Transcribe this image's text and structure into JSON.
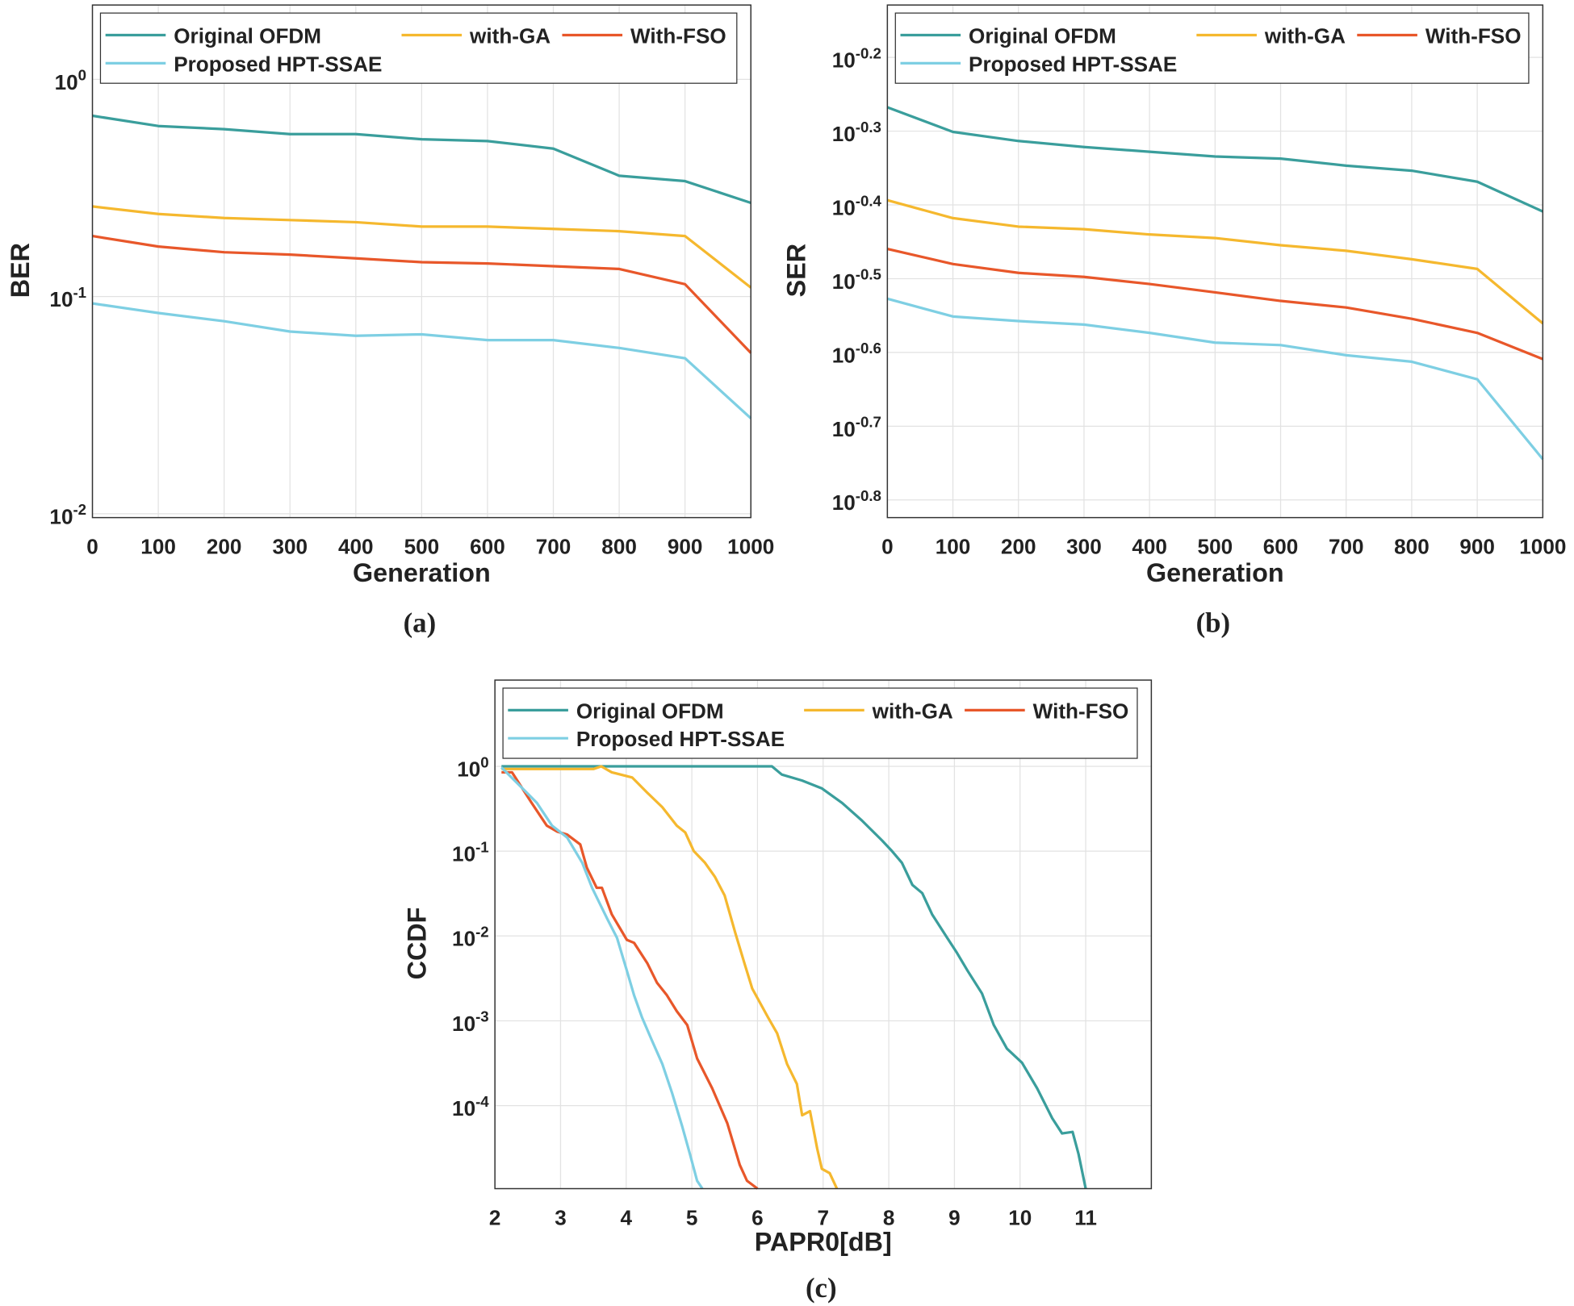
{
  "chart_data": [
    {
      "type": "line",
      "caption": "(a)",
      "xlabel": "Generation",
      "ylabel": "BER",
      "yscale": "log",
      "grid": true,
      "legend": "top",
      "x": [
        0,
        100,
        200,
        300,
        400,
        500,
        600,
        700,
        800,
        900,
        1000
      ],
      "xlim": [
        0,
        1000
      ],
      "xticks": [
        0,
        100,
        200,
        300,
        400,
        500,
        600,
        700,
        800,
        900,
        1000
      ],
      "ylim": [
        0.0096,
        2.2
      ],
      "yticks": [
        {
          "value": 0.01,
          "label": "10^-2"
        },
        {
          "value": 0.1,
          "label": "10^-1"
        },
        {
          "value": 1,
          "label": "10^0"
        }
      ],
      "series": [
        {
          "name": "Original OFDM",
          "color": "#3a9e9c",
          "values": [
            0.68,
            0.61,
            0.59,
            0.56,
            0.56,
            0.53,
            0.52,
            0.48,
            0.36,
            0.34,
            0.27
          ]
        },
        {
          "name": "with-GA",
          "color": "#f5b82e",
          "values": [
            0.26,
            0.24,
            0.23,
            0.225,
            0.22,
            0.21,
            0.21,
            0.205,
            0.2,
            0.19,
            0.11
          ]
        },
        {
          "name": "With-FSO",
          "color": "#e8572a",
          "values": [
            0.19,
            0.17,
            0.16,
            0.156,
            0.15,
            0.144,
            0.142,
            0.138,
            0.134,
            0.114,
            0.055
          ]
        },
        {
          "name": "Proposed HPT-SSAE",
          "color": "#7ecfe3",
          "values": [
            0.093,
            0.084,
            0.077,
            0.069,
            0.066,
            0.067,
            0.063,
            0.063,
            0.058,
            0.052,
            0.0275
          ]
        }
      ]
    },
    {
      "type": "line",
      "caption": "(b)",
      "xlabel": "Generation",
      "ylabel": "SER",
      "yscale": "log",
      "grid": true,
      "legend": "top",
      "x": [
        0,
        100,
        200,
        300,
        400,
        500,
        600,
        700,
        800,
        900,
        1000
      ],
      "xlim": [
        0,
        1000
      ],
      "xticks": [
        0,
        100,
        200,
        300,
        400,
        500,
        600,
        700,
        800,
        900,
        1000
      ],
      "ylim": [
        0.15,
        0.743
      ],
      "yticks": [
        {
          "value": 0.1585,
          "label": "10^-0.8"
        },
        {
          "value": 0.1995,
          "label": "10^-0.7"
        },
        {
          "value": 0.2512,
          "label": "10^-0.6"
        },
        {
          "value": 0.3162,
          "label": "10^-0.5"
        },
        {
          "value": 0.3981,
          "label": "10^-0.4"
        },
        {
          "value": 0.5012,
          "label": "10^-0.3"
        },
        {
          "value": 0.631,
          "label": "10^-0.2"
        }
      ],
      "series": [
        {
          "name": "Original OFDM",
          "color": "#3a9e9c",
          "values": [
            0.54,
            0.5,
            0.486,
            0.477,
            0.47,
            0.463,
            0.46,
            0.45,
            0.443,
            0.428,
            0.39
          ]
        },
        {
          "name": "with-GA",
          "color": "#f5b82e",
          "values": [
            0.404,
            0.382,
            0.372,
            0.369,
            0.363,
            0.359,
            0.351,
            0.345,
            0.336,
            0.326,
            0.275
          ]
        },
        {
          "name": "With-FSO",
          "color": "#e8572a",
          "values": [
            0.347,
            0.331,
            0.322,
            0.318,
            0.311,
            0.303,
            0.295,
            0.289,
            0.279,
            0.267,
            0.246
          ]
        },
        {
          "name": "Proposed HPT-SSAE",
          "color": "#7ecfe3",
          "values": [
            0.297,
            0.281,
            0.277,
            0.274,
            0.267,
            0.259,
            0.257,
            0.249,
            0.244,
            0.231,
            0.18
          ]
        }
      ]
    },
    {
      "type": "line",
      "caption": "(c)",
      "xlabel": "PAPR0[dB]",
      "ylabel": "CCDF",
      "yscale": "log",
      "grid": true,
      "legend": "top",
      "xlim": [
        2,
        12
      ],
      "xticks": [
        2,
        3,
        4,
        5,
        6,
        7,
        8,
        9,
        10,
        11
      ],
      "ylim": [
        1.05e-05,
        10.4
      ],
      "yticks": [
        {
          "value": 0.0001,
          "label": "10^-4"
        },
        {
          "value": 0.001,
          "label": "10^-3"
        },
        {
          "value": 0.01,
          "label": "10^-2"
        },
        {
          "value": 0.1,
          "label": "10^-1"
        },
        {
          "value": 1,
          "label": "10^0"
        }
      ],
      "series": [
        {
          "name": "Original OFDM",
          "color": "#3a9e9c",
          "x": [
            2.1,
            6.22,
            6.37,
            6.68,
            6.98,
            7.29,
            7.59,
            7.9,
            8.05,
            8.2,
            8.36,
            8.51,
            8.66,
            8.89,
            9.04,
            9.2,
            9.42,
            9.6,
            9.8,
            10.03,
            10.26,
            10.49,
            10.64,
            10.8,
            10.89,
            11.0
          ],
          "values": [
            1,
            1,
            0.8,
            0.68,
            0.55,
            0.37,
            0.23,
            0.133,
            0.1,
            0.073,
            0.04,
            0.032,
            0.018,
            0.0095,
            0.0063,
            0.0039,
            0.0021,
            0.00089,
            0.00047,
            0.00032,
            0.00016,
            7.1e-05,
            4.7e-05,
            4.9e-05,
            2.7e-05,
            1.05e-05
          ]
        },
        {
          "name": "with-GA",
          "color": "#f5b82e",
          "x": [
            2.1,
            3.5,
            3.62,
            3.78,
            4.09,
            4.32,
            4.55,
            4.77,
            4.9,
            5.03,
            5.2,
            5.35,
            5.5,
            5.66,
            5.8,
            5.92,
            6.16,
            6.3,
            6.45,
            6.6,
            6.68,
            6.8,
            6.91,
            6.98,
            7.1,
            7.21
          ],
          "values": [
            0.93,
            0.93,
            1.0,
            0.85,
            0.74,
            0.49,
            0.33,
            0.2,
            0.166,
            0.1,
            0.073,
            0.05,
            0.03,
            0.011,
            0.0048,
            0.0024,
            0.0011,
            0.00071,
            0.00031,
            0.00018,
            7.7e-05,
            8.6e-05,
            3.1e-05,
            1.8e-05,
            1.6e-05,
            1.05e-05
          ]
        },
        {
          "name": "With-FSO",
          "color": "#e8572a",
          "x": [
            2.1,
            2.26,
            2.56,
            2.79,
            2.95,
            3.1,
            3.3,
            3.4,
            3.55,
            3.63,
            3.78,
            4.01,
            4.12,
            4.32,
            4.47,
            4.62,
            4.77,
            4.93,
            5.08,
            5.31,
            5.54,
            5.73,
            5.84,
            6.0
          ],
          "values": [
            0.85,
            0.85,
            0.37,
            0.2,
            0.17,
            0.157,
            0.12,
            0.064,
            0.037,
            0.037,
            0.018,
            0.009,
            0.0083,
            0.0048,
            0.0028,
            0.002,
            0.0013,
            0.00089,
            0.00036,
            0.00016,
            6.2e-05,
            2e-05,
            1.3e-05,
            1.05e-05
          ]
        },
        {
          "name": "Proposed HPT-SSAE",
          "color": "#7ecfe3",
          "x": [
            2.1,
            2.41,
            2.64,
            2.87,
            3.1,
            3.33,
            3.48,
            3.71,
            3.86,
            4.01,
            4.12,
            4.24,
            4.39,
            4.55,
            4.7,
            4.85,
            4.97,
            5.08,
            5.16
          ],
          "values": [
            0.97,
            0.56,
            0.37,
            0.2,
            0.145,
            0.073,
            0.037,
            0.016,
            0.0095,
            0.0039,
            0.002,
            0.0011,
            0.00059,
            0.00031,
            0.00014,
            5.8e-05,
            2.7e-05,
            1.3e-05,
            1.05e-05
          ]
        }
      ]
    }
  ]
}
